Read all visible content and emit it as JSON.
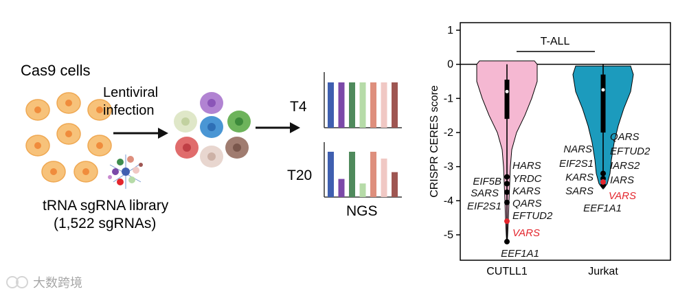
{
  "workflow": {
    "cells_label": "Cas9 cells",
    "arrow_label_line1": "Lentiviral",
    "arrow_label_line2": "infection",
    "library_label_line1": "tRNA sgRNA library",
    "library_label_line2": "(1,522 sgRNAs)",
    "timepoints": [
      "T4",
      "T20"
    ],
    "readout_label": "NGS",
    "bar_colors": [
      "#3f5fb0",
      "#7b49a8",
      "#4f8a5c",
      "#b6dba8",
      "#de8f7d",
      "#f0c8c4",
      "#9e5652"
    ],
    "t4_values": [
      1,
      1,
      1,
      1,
      1,
      1,
      1
    ],
    "t20_values": [
      1,
      0.4,
      1,
      0.3,
      1,
      0.85,
      0.55
    ]
  },
  "chart_data": {
    "type": "violin",
    "title": "T-ALL",
    "ylabel": "CRISPR CERES score",
    "ylim": [
      -5.7,
      1.2
    ],
    "yticks": [
      1,
      0,
      -1,
      -2,
      -3,
      -4,
      -5
    ],
    "groups": [
      {
        "name": "CUTLL1",
        "color": "#f5b8d2",
        "median": -0.8,
        "q1": -1.6,
        "q3": -0.45,
        "whisker_low": -2.9,
        "whisker_high": 0.0,
        "min": -5.2,
        "labels_left": [
          "EIF5B",
          "SARS",
          "EIF2S1"
        ],
        "labels_right": [
          "HARS",
          "YRDC",
          "KARS",
          "QARS",
          "EFTUD2"
        ],
        "highlight": {
          "gene": "VARS",
          "value": -4.6
        },
        "bottom_label": "EEF1A1",
        "points": [
          -3.3,
          -3.5,
          -3.75,
          -4.05,
          -5.2
        ]
      },
      {
        "name": "Jurkat",
        "color": "#1c9bbd",
        "median": -0.75,
        "q1": -2.0,
        "q3": -0.3,
        "whisker_low": -3.0,
        "whisker_high": 0.0,
        "min": -3.6,
        "labels_left": [
          "NARS",
          "EIF2S1",
          "KARS",
          "SARS"
        ],
        "labels_right": [
          "QARS",
          "EFTUD2",
          "IARS2",
          "IARS"
        ],
        "highlight": {
          "gene": "VARS",
          "value": -3.45
        },
        "bottom_label": "EEF1A1",
        "points": [
          -3.2,
          -3.35,
          -3.55
        ]
      }
    ]
  },
  "watermark": "大数跨境"
}
